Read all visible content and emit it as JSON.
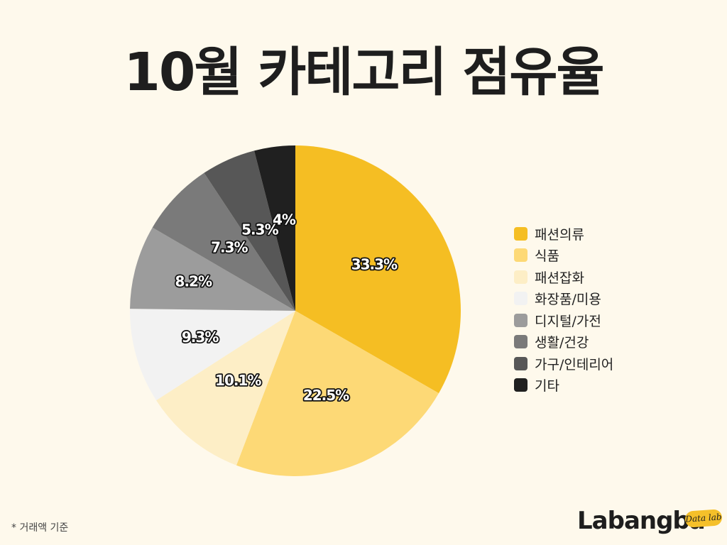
{
  "title": "10월 카테고리 점유율",
  "footnote": "* 거래액 기준",
  "brand": {
    "wordmark": "Labangba",
    "badge": "Data lab",
    "badge_color": "#f5c02a"
  },
  "chart_data": {
    "type": "pie",
    "title": "10월 카테고리 점유율",
    "start": "12 o'clock",
    "direction": "clockwise",
    "legend_position": "right",
    "categories": [
      "패션의류",
      "식품",
      "패션잡화",
      "화장품/미용",
      "디지털/가전",
      "생활/건강",
      "가구/인테리어",
      "기타"
    ],
    "values": [
      33.3,
      22.5,
      10.1,
      9.3,
      8.2,
      7.3,
      5.3,
      4.0
    ],
    "labels": [
      "33.3%",
      "22.5%",
      "10.1%",
      "9.3%",
      "8.2%",
      "7.3%",
      "5.3%",
      "4%"
    ],
    "colors": [
      "#f5be23",
      "#fdd976",
      "#fdeec6",
      "#f2f2f2",
      "#9c9c9c",
      "#7a7a7a",
      "#575757",
      "#202020"
    ]
  }
}
